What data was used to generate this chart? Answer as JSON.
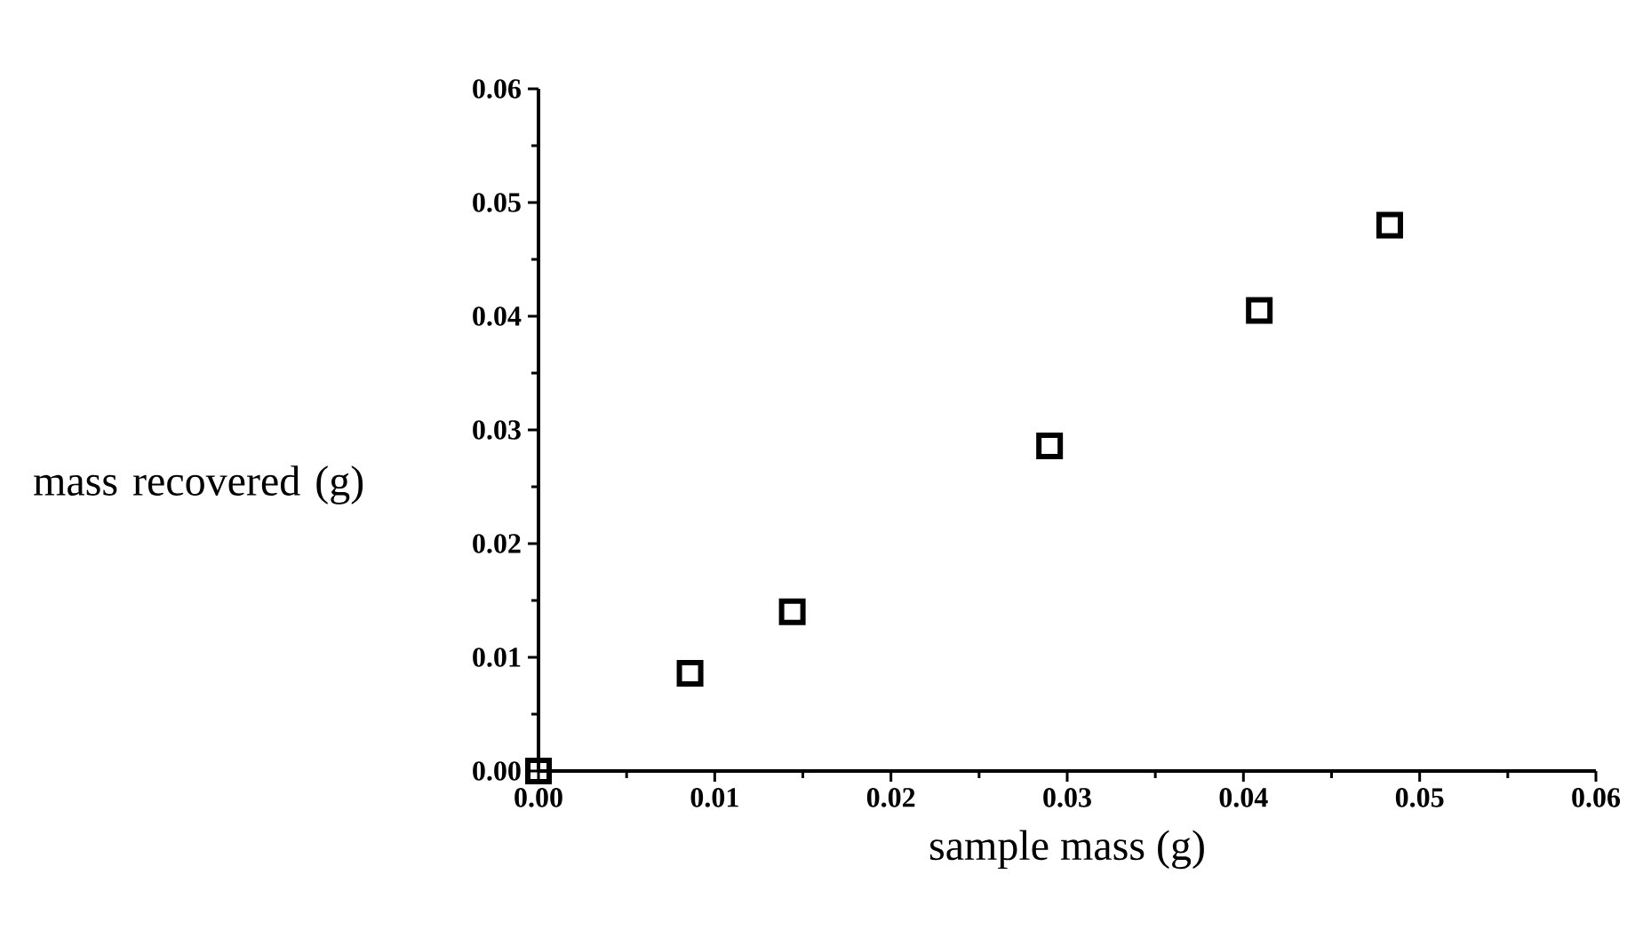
{
  "chart_data": {
    "type": "scatter",
    "xlabel": "sample mass (g)",
    "ylabel": "mass recovered (g)",
    "x": [
      0,
      0.0086,
      0.0144,
      0.029,
      0.0409,
      0.0483
    ],
    "values": [
      0,
      0.0086,
      0.014,
      0.0286,
      0.0405,
      0.048
    ],
    "color": "#000000",
    "marker": "square",
    "xlim": [
      0,
      0.06
    ],
    "ylim": [
      0,
      0.06
    ],
    "xticks": [
      {
        "value": 0,
        "label": "0.00"
      },
      {
        "value": 0.01,
        "label": "0.01"
      },
      {
        "value": 0.02,
        "label": "0.02"
      },
      {
        "value": 0.03,
        "label": "0.03"
      },
      {
        "value": 0.04,
        "label": "0.04"
      },
      {
        "value": 0.05,
        "label": "0.05"
      },
      {
        "value": 0.06,
        "label": "0.06"
      }
    ],
    "yticks": [
      {
        "value": 0,
        "label": "0.00"
      },
      {
        "value": 0.01,
        "label": "0.01"
      },
      {
        "value": 0.02,
        "label": "0.02"
      },
      {
        "value": 0.03,
        "label": "0.03"
      },
      {
        "value": 0.04,
        "label": "0.04"
      },
      {
        "value": 0.05,
        "label": "0.05"
      },
      {
        "value": 0.06,
        "label": "0.06"
      }
    ]
  }
}
